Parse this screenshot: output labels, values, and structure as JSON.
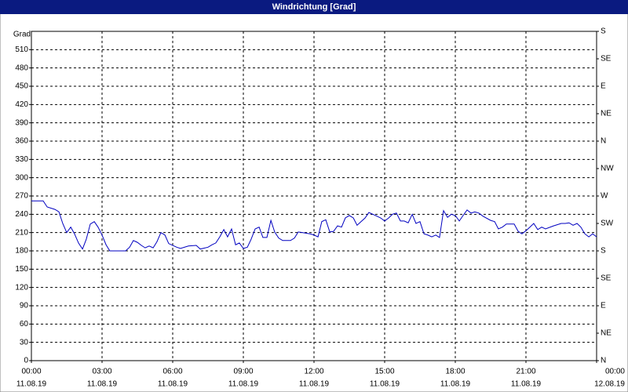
{
  "chart_data": {
    "type": "line",
    "title": "Windrichtung [Grad]",
    "ylabel": "Grad",
    "xlim": [
      0,
      24
    ],
    "xticks": [
      {
        "value": 0,
        "label": "00:00"
      },
      {
        "value": 3,
        "label": "03:00"
      },
      {
        "value": 6,
        "label": "06:00"
      },
      {
        "value": 9,
        "label": "09:00"
      },
      {
        "value": 12,
        "label": "12:00"
      },
      {
        "value": 15,
        "label": "15:00"
      },
      {
        "value": 18,
        "label": "18:00"
      },
      {
        "value": 21,
        "label": "21:00"
      },
      {
        "value": 24,
        "label": "00:00"
      }
    ],
    "xtick_dates": [
      "11.08.19",
      "11.08.19",
      "11.08.19",
      "11.08.19",
      "11.08.19",
      "11.08.19",
      "11.08.19",
      "11.08.19",
      "12.08.19"
    ],
    "ylim": [
      0,
      540
    ],
    "yticks": [
      0,
      30,
      60,
      90,
      120,
      150,
      180,
      210,
      240,
      270,
      300,
      330,
      360,
      390,
      420,
      450,
      480,
      510
    ],
    "y2lim": [
      0,
      540
    ],
    "y2ticks": [
      {
        "value": 0,
        "label": "N"
      },
      {
        "value": 45,
        "label": "NE"
      },
      {
        "value": 90,
        "label": "E"
      },
      {
        "value": 135,
        "label": "SE"
      },
      {
        "value": 180,
        "label": "S"
      },
      {
        "value": 225,
        "label": "SW"
      },
      {
        "value": 270,
        "label": "W"
      },
      {
        "value": 315,
        "label": "NW"
      },
      {
        "value": 360,
        "label": "N"
      },
      {
        "value": 405,
        "label": "NE"
      },
      {
        "value": 450,
        "label": "E"
      },
      {
        "value": 495,
        "label": "SE"
      },
      {
        "value": 540,
        "label": "S"
      }
    ],
    "grid": true,
    "x": [
      0,
      0.5,
      0.67,
      1,
      1.17,
      1.33,
      1.5,
      1.67,
      1.83,
      2,
      2.17,
      2.33,
      2.5,
      2.67,
      2.83,
      3,
      3.17,
      3.33,
      3.67,
      4,
      4.17,
      4.33,
      4.5,
      4.67,
      4.83,
      5,
      5.17,
      5.33,
      5.5,
      5.67,
      5.83,
      6.17,
      6.33,
      6.67,
      7,
      7.17,
      7.5,
      7.67,
      7.83,
      8,
      8.17,
      8.33,
      8.5,
      8.67,
      8.83,
      9,
      9.17,
      9.33,
      9.5,
      9.67,
      9.83,
      10,
      10.17,
      10.33,
      10.5,
      10.67,
      11,
      11.17,
      11.33,
      11.5,
      11.83,
      12,
      12.17,
      12.33,
      12.5,
      12.67,
      12.83,
      13,
      13.17,
      13.33,
      13.5,
      13.67,
      13.83,
      14,
      14.17,
      14.33,
      14.67,
      14.83,
      15,
      15.17,
      15.33,
      15.5,
      15.67,
      15.83,
      16,
      16.17,
      16.33,
      16.5,
      16.67,
      16.83,
      17,
      17.17,
      17.33,
      17.5,
      17.67,
      17.83,
      18,
      18.17,
      18.33,
      18.5,
      18.67,
      18.83,
      19,
      19.17,
      19.5,
      19.67,
      19.83,
      20,
      20.17,
      20.5,
      20.67,
      20.83,
      21,
      21.17,
      21.33,
      21.5,
      21.67,
      21.83,
      22.17,
      22.5,
      22.67,
      22.83,
      23,
      23.17,
      23.33,
      23.5,
      23.67,
      23.83,
      24
    ],
    "series": [
      {
        "color": "#0000c0",
        "values": [
          262,
          262,
          252,
          248,
          244,
          225,
          210,
          219,
          208,
          193,
          183,
          199,
          224,
          228,
          219,
          206,
          190,
          180,
          180,
          180,
          186,
          197,
          194,
          189,
          185,
          188,
          185,
          195,
          210,
          206,
          192,
          186,
          184,
          188,
          189,
          183,
          186,
          190,
          193,
          203,
          215,
          203,
          216,
          190,
          193,
          184,
          186,
          199,
          216,
          219,
          202,
          202,
          230,
          211,
          201,
          197,
          197,
          201,
          211,
          210,
          208,
          206,
          203,
          228,
          231,
          211,
          212,
          221,
          219,
          234,
          238,
          234,
          222,
          228,
          234,
          243,
          237,
          234,
          229,
          234,
          240,
          242,
          229,
          229,
          226,
          240,
          225,
          228,
          208,
          206,
          203,
          206,
          202,
          246,
          235,
          240,
          238,
          229,
          238,
          247,
          242,
          244,
          242,
          237,
          230,
          228,
          216,
          219,
          224,
          224,
          212,
          208,
          213,
          219,
          225,
          215,
          219,
          216,
          221,
          225,
          225,
          226,
          222,
          225,
          219,
          208,
          203,
          208,
          203
        ]
      }
    ]
  }
}
